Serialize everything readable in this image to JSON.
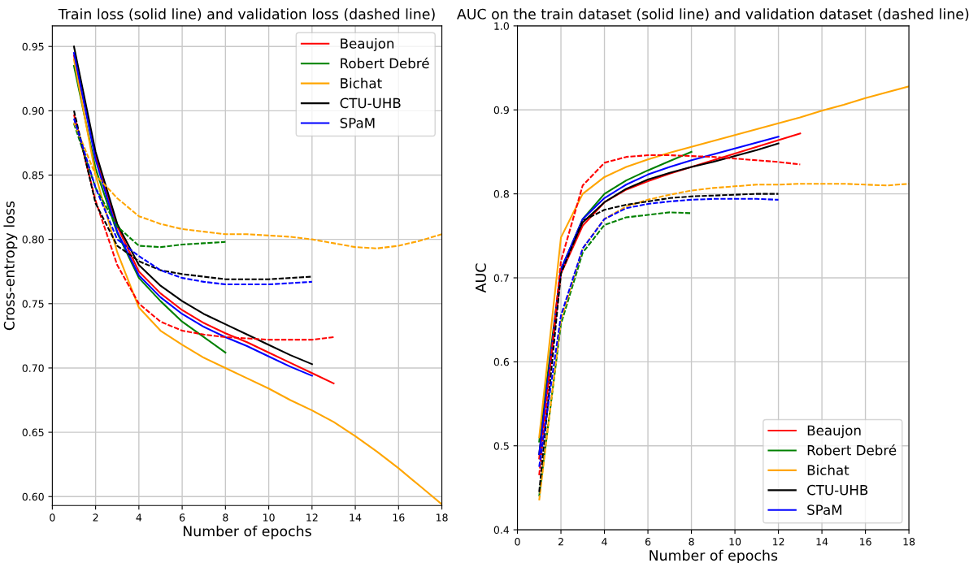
{
  "chart_data": [
    {
      "type": "line",
      "title": "Train loss (solid line) and validation loss (dashed line)",
      "xlabel": "Number of epochs",
      "ylabel": "Cross-entropy loss",
      "xlim": [
        0,
        18
      ],
      "ylim": [
        0.593,
        0.966
      ],
      "xticks": [
        0,
        2,
        4,
        6,
        8,
        10,
        12,
        14,
        16,
        18
      ],
      "yticks": [
        {
          "value": 0.6,
          "label": "0.60"
        },
        {
          "value": 0.65,
          "label": "0.65"
        },
        {
          "value": 0.7,
          "label": "0.70"
        },
        {
          "value": 0.75,
          "label": "0.75"
        },
        {
          "value": 0.8,
          "label": "0.80"
        },
        {
          "value": 0.85,
          "label": "0.85"
        },
        {
          "value": 0.9,
          "label": "0.90"
        },
        {
          "value": 0.95,
          "label": "0.95"
        }
      ],
      "grid": true,
      "legend": "top right",
      "marker": "none",
      "series": [
        {
          "name": "Beaujon",
          "color": "#ff0000",
          "line_style": "solid",
          "x": [
            1,
            2,
            3,
            4,
            5,
            6,
            7,
            8,
            9,
            10,
            11,
            12,
            13
          ],
          "values": [
            0.943,
            0.865,
            0.81,
            0.775,
            0.758,
            0.745,
            0.735,
            0.727,
            0.72,
            0.712,
            0.704,
            0.696,
            0.688
          ]
        },
        {
          "name": "Robert Debré",
          "color": "#008000",
          "line_style": "solid",
          "x": [
            1,
            2,
            3,
            4,
            5,
            6,
            7,
            8
          ],
          "values": [
            0.935,
            0.855,
            0.805,
            0.77,
            0.752,
            0.736,
            0.724,
            0.712
          ]
        },
        {
          "name": "Bichat",
          "color": "#ffa500",
          "line_style": "solid",
          "x": [
            1,
            2,
            3,
            4,
            5,
            6,
            7,
            8,
            9,
            10,
            11,
            12,
            13,
            14,
            15,
            16,
            17,
            18
          ],
          "values": [
            0.94,
            0.85,
            0.79,
            0.747,
            0.729,
            0.718,
            0.708,
            0.7,
            0.692,
            0.684,
            0.675,
            0.667,
            0.658,
            0.647,
            0.635,
            0.622,
            0.608,
            0.594
          ]
        },
        {
          "name": "CTU-UHB",
          "color": "#000000",
          "line_style": "solid",
          "x": [
            1,
            2,
            3,
            4,
            5,
            6,
            7,
            8,
            9,
            10,
            11,
            12
          ],
          "values": [
            0.95,
            0.868,
            0.812,
            0.78,
            0.764,
            0.752,
            0.742,
            0.734,
            0.726,
            0.718,
            0.71,
            0.703
          ]
        },
        {
          "name": "SPaM",
          "color": "#0000ff",
          "line_style": "solid",
          "x": [
            1,
            2,
            3,
            4,
            5,
            6,
            7,
            8,
            9,
            10,
            11,
            12
          ],
          "values": [
            0.945,
            0.862,
            0.806,
            0.772,
            0.755,
            0.742,
            0.732,
            0.724,
            0.717,
            0.709,
            0.701,
            0.694
          ]
        },
        {
          "color": "#ff0000",
          "line_style": "dashed",
          "x": [
            1,
            2,
            3,
            4,
            5,
            6,
            7,
            8,
            9,
            10,
            11,
            12,
            13
          ],
          "values": [
            0.897,
            0.83,
            0.78,
            0.75,
            0.736,
            0.729,
            0.726,
            0.724,
            0.723,
            0.722,
            0.722,
            0.722,
            0.724
          ]
        },
        {
          "color": "#008000",
          "line_style": "dashed",
          "x": [
            1,
            2,
            3,
            4,
            5,
            6,
            7,
            8
          ],
          "values": [
            0.89,
            0.84,
            0.81,
            0.795,
            0.794,
            0.796,
            0.797,
            0.798
          ]
        },
        {
          "color": "#ffa500",
          "line_style": "dashed",
          "x": [
            1,
            2,
            3,
            4,
            5,
            6,
            7,
            8,
            9,
            10,
            11,
            12,
            13,
            14,
            15,
            16,
            17,
            18
          ],
          "values": [
            0.891,
            0.85,
            0.832,
            0.818,
            0.812,
            0.808,
            0.806,
            0.804,
            0.804,
            0.803,
            0.802,
            0.8,
            0.797,
            0.794,
            0.793,
            0.795,
            0.799,
            0.804
          ]
        },
        {
          "color": "#000000",
          "line_style": "dashed",
          "x": [
            1,
            2,
            3,
            4,
            5,
            6,
            7,
            8,
            9,
            10,
            11,
            12
          ],
          "values": [
            0.9,
            0.828,
            0.795,
            0.783,
            0.776,
            0.773,
            0.771,
            0.769,
            0.769,
            0.769,
            0.77,
            0.771
          ]
        },
        {
          "color": "#0000ff",
          "line_style": "dashed",
          "x": [
            1,
            2,
            3,
            4,
            5,
            6,
            7,
            8,
            9,
            10,
            11,
            12
          ],
          "values": [
            0.894,
            0.84,
            0.8,
            0.787,
            0.776,
            0.77,
            0.767,
            0.765,
            0.765,
            0.765,
            0.766,
            0.767
          ]
        }
      ]
    },
    {
      "type": "line",
      "title": "AUC on the train dataset (solid line) and validation dataset (dashed line)",
      "xlabel": "Number of epochs",
      "ylabel": "AUC",
      "xlim": [
        0,
        18
      ],
      "ylim": [
        0.4,
        1.0
      ],
      "xticks": [
        0,
        2,
        4,
        6,
        8,
        10,
        12,
        14,
        16,
        18
      ],
      "yticks": [
        {
          "value": 0.4,
          "label": "0.4"
        },
        {
          "value": 0.5,
          "label": "0.5"
        },
        {
          "value": 0.6,
          "label": "0.6"
        },
        {
          "value": 0.7,
          "label": "0.7"
        },
        {
          "value": 0.8,
          "label": "0.8"
        },
        {
          "value": 0.9,
          "label": "0.9"
        },
        {
          "value": 1.0,
          "label": "1.0"
        }
      ],
      "grid": true,
      "legend": "bottom right",
      "marker": "none",
      "series": [
        {
          "name": "Beaujon",
          "color": "#ff0000",
          "line_style": "solid",
          "x": [
            1,
            2,
            3,
            4,
            5,
            6,
            7,
            8,
            9,
            10,
            11,
            12,
            13
          ],
          "values": [
            0.485,
            0.705,
            0.762,
            0.79,
            0.805,
            0.815,
            0.824,
            0.832,
            0.84,
            0.848,
            0.856,
            0.864,
            0.872
          ]
        },
        {
          "name": "Robert Debré",
          "color": "#008000",
          "line_style": "solid",
          "x": [
            1,
            2,
            3,
            4,
            5,
            6,
            7,
            8
          ],
          "values": [
            0.505,
            0.71,
            0.77,
            0.8,
            0.816,
            0.828,
            0.839,
            0.85
          ]
        },
        {
          "name": "Bichat",
          "color": "#ffa500",
          "line_style": "solid",
          "x": [
            1,
            2,
            3,
            4,
            5,
            6,
            7,
            8,
            9,
            10,
            11,
            12,
            13,
            14,
            15,
            16,
            17,
            18
          ],
          "values": [
            0.51,
            0.748,
            0.8,
            0.82,
            0.832,
            0.841,
            0.849,
            0.856,
            0.863,
            0.87,
            0.877,
            0.884,
            0.891,
            0.899,
            0.906,
            0.914,
            0.921,
            0.928
          ]
        },
        {
          "name": "CTU-UHB",
          "color": "#000000",
          "line_style": "solid",
          "x": [
            1,
            2,
            3,
            4,
            5,
            6,
            7,
            8,
            9,
            10,
            11,
            12
          ],
          "values": [
            0.49,
            0.71,
            0.766,
            0.79,
            0.806,
            0.817,
            0.825,
            0.832,
            0.838,
            0.845,
            0.852,
            0.86
          ]
        },
        {
          "name": "SPaM",
          "color": "#0000ff",
          "line_style": "solid",
          "x": [
            1,
            2,
            3,
            4,
            5,
            6,
            7,
            8,
            9,
            10,
            11,
            12
          ],
          "values": [
            0.49,
            0.71,
            0.77,
            0.795,
            0.811,
            0.823,
            0.832,
            0.84,
            0.847,
            0.854,
            0.861,
            0.868
          ]
        },
        {
          "color": "#ff0000",
          "line_style": "dashed",
          "x": [
            1,
            2,
            3,
            4,
            5,
            6,
            7,
            8,
            9,
            10,
            11,
            12,
            13
          ],
          "values": [
            0.465,
            0.72,
            0.81,
            0.837,
            0.844,
            0.846,
            0.846,
            0.845,
            0.844,
            0.842,
            0.84,
            0.838,
            0.835
          ]
        },
        {
          "color": "#008000",
          "line_style": "dashed",
          "x": [
            1,
            2,
            3,
            4,
            5,
            6,
            7,
            8
          ],
          "values": [
            0.44,
            0.645,
            0.73,
            0.763,
            0.772,
            0.775,
            0.778,
            0.777
          ]
        },
        {
          "color": "#ffa500",
          "line_style": "dashed",
          "x": [
            1,
            2,
            3,
            4,
            5,
            6,
            7,
            8,
            9,
            10,
            11,
            12,
            13,
            14,
            15,
            16,
            17,
            18
          ],
          "values": [
            0.435,
            0.65,
            0.735,
            0.77,
            0.785,
            0.793,
            0.799,
            0.804,
            0.807,
            0.809,
            0.811,
            0.811,
            0.812,
            0.812,
            0.812,
            0.811,
            0.81,
            0.812
          ]
        },
        {
          "color": "#000000",
          "line_style": "dashed",
          "x": [
            1,
            2,
            3,
            4,
            5,
            6,
            7,
            8,
            9,
            10,
            11,
            12
          ],
          "values": [
            0.445,
            0.705,
            0.768,
            0.781,
            0.787,
            0.791,
            0.795,
            0.797,
            0.798,
            0.799,
            0.8,
            0.8
          ]
        },
        {
          "color": "#0000ff",
          "line_style": "dashed",
          "x": [
            1,
            2,
            3,
            4,
            5,
            6,
            7,
            8,
            9,
            10,
            11,
            12
          ],
          "values": [
            0.475,
            0.655,
            0.735,
            0.77,
            0.783,
            0.788,
            0.791,
            0.793,
            0.794,
            0.794,
            0.794,
            0.793
          ]
        }
      ]
    }
  ]
}
